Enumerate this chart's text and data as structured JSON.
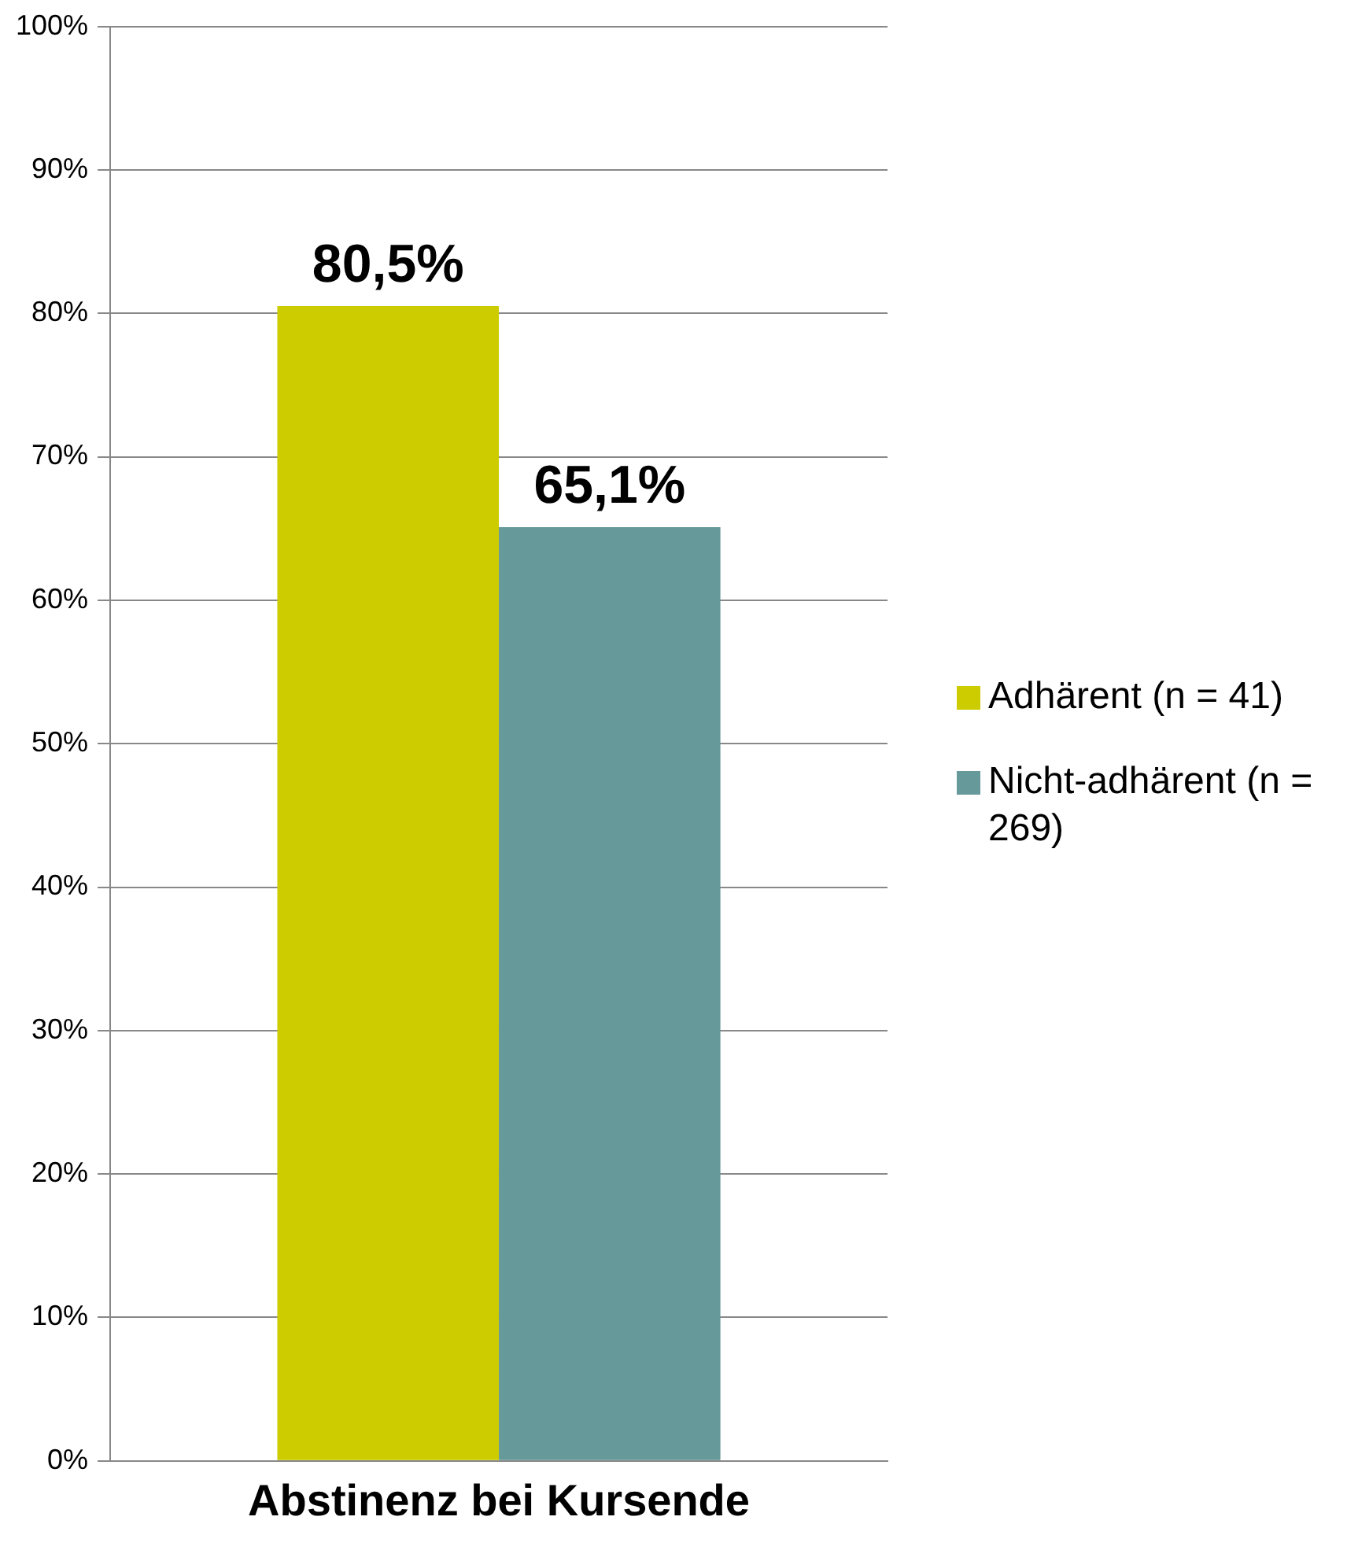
{
  "chart_data": {
    "type": "bar",
    "categories": [
      "Abstinenz bei Kursende"
    ],
    "series": [
      {
        "name": "Adhärent (n = 41)",
        "color": "#cccc00",
        "values": [
          80.5
        ],
        "value_labels": [
          "80,5%"
        ]
      },
      {
        "name": "Nicht-adhärent (n = 269)",
        "color": "#669999",
        "values": [
          65.1
        ],
        "value_labels": [
          "65,1%"
        ]
      }
    ],
    "ylim": [
      0,
      100
    ],
    "yticks": [
      {
        "value": 0,
        "label": "0%"
      },
      {
        "value": 10,
        "label": "10%"
      },
      {
        "value": 20,
        "label": "20%"
      },
      {
        "value": 30,
        "label": "30%"
      },
      {
        "value": 40,
        "label": "40%"
      },
      {
        "value": 50,
        "label": "50%"
      },
      {
        "value": 60,
        "label": "60%"
      },
      {
        "value": 70,
        "label": "70%"
      },
      {
        "value": 80,
        "label": "80%"
      },
      {
        "value": 90,
        "label": "90%"
      },
      {
        "value": 100,
        "label": "100%"
      }
    ],
    "grid": "y",
    "legend": "right"
  }
}
